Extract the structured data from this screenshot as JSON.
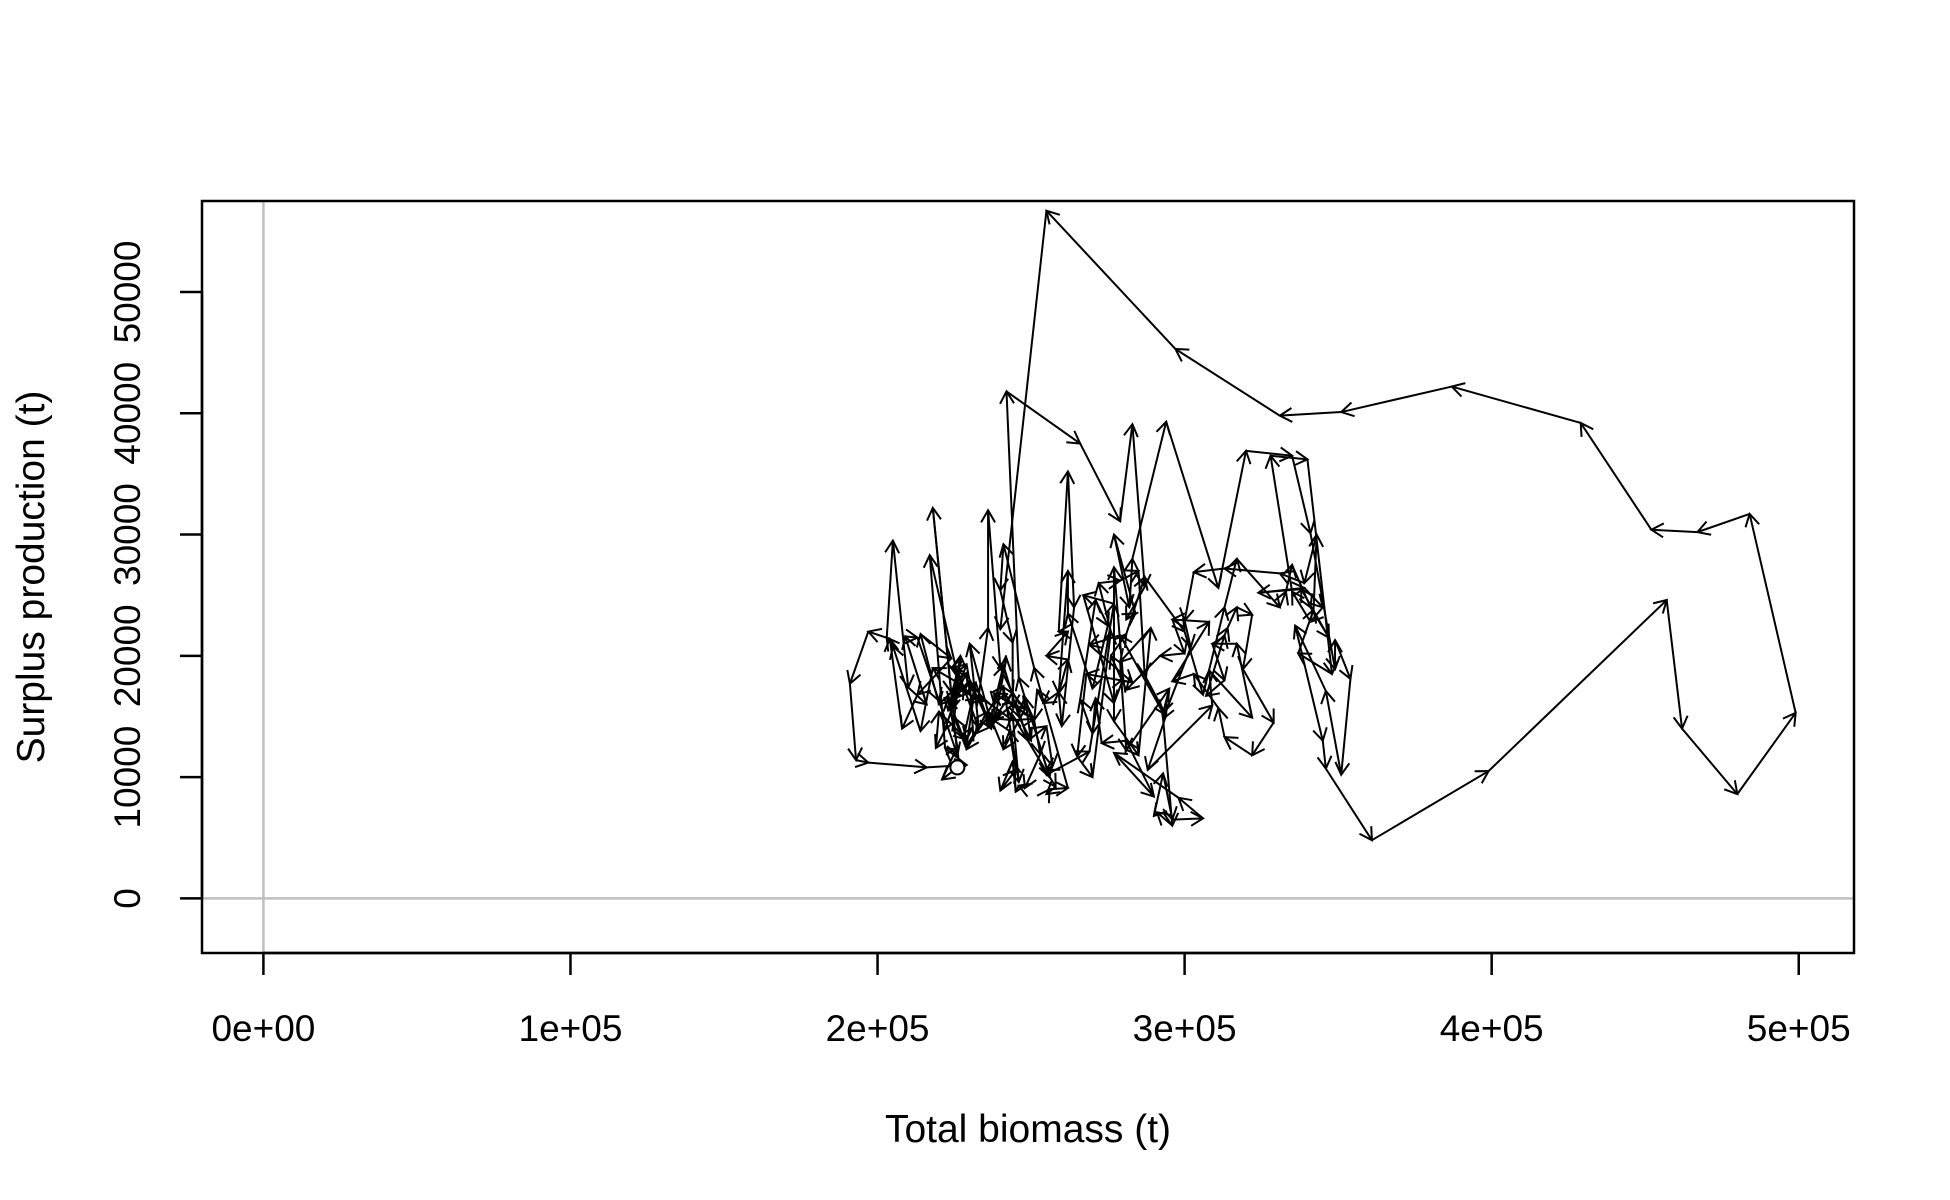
{
  "chart_data": {
    "type": "line",
    "subtype": "phase-plot-with-arrows",
    "title": "",
    "xlabel": "Total biomass (t)",
    "ylabel": "Surplus production (t)",
    "xlim": [
      -20000,
      518000
    ],
    "ylim": [
      -4500,
      57500
    ],
    "x_ticks": [
      0,
      100000,
      200000,
      300000,
      400000,
      500000
    ],
    "x_tick_labels": [
      "0e+00",
      "1e+05",
      "2e+05",
      "3e+05",
      "4e+05",
      "5e+05"
    ],
    "y_ticks": [
      0,
      10000,
      20000,
      30000,
      40000,
      50000
    ],
    "y_tick_labels": [
      "0",
      "10000",
      "20000",
      "30000",
      "40000",
      "50000"
    ],
    "reference_lines": {
      "x": 0,
      "y": 0,
      "color": "#bfbfbf"
    },
    "grid": false,
    "legend": "none",
    "start_marker": {
      "x": 226000,
      "y": 10800,
      "shape": "open-circle"
    },
    "series": [
      {
        "points": [
          [
            226000,
            10800
          ],
          [
            221000,
            9800
          ],
          [
            226000,
            12500
          ],
          [
            223000,
            16500
          ],
          [
            228000,
            13200
          ],
          [
            232000,
            17800
          ],
          [
            229000,
            12600
          ],
          [
            236000,
            15400
          ],
          [
            230000,
            21000
          ],
          [
            233000,
            14000
          ],
          [
            226000,
            18800
          ],
          [
            223000,
            15500
          ],
          [
            228000,
            17500
          ],
          [
            218000,
            19000
          ],
          [
            214000,
            13800
          ],
          [
            205000,
            20800
          ],
          [
            203000,
            21500
          ],
          [
            205000,
            29500
          ],
          [
            210000,
            17400
          ],
          [
            216000,
            16000
          ],
          [
            209000,
            21600
          ],
          [
            213000,
            21500
          ],
          [
            220000,
            16300
          ],
          [
            226000,
            11800
          ],
          [
            218000,
            32200
          ],
          [
            224000,
            17000
          ],
          [
            220000,
            16000
          ],
          [
            214000,
            21800
          ],
          [
            224000,
            19800
          ],
          [
            213000,
            16800
          ],
          [
            208000,
            14000
          ],
          [
            204000,
            21400
          ],
          [
            197000,
            22000
          ],
          [
            191000,
            17700
          ],
          [
            193000,
            11400
          ],
          [
            197000,
            11200
          ],
          [
            216000,
            10800
          ],
          [
            229000,
            11000
          ],
          [
            222000,
            12400
          ],
          [
            217000,
            28300
          ],
          [
            226000,
            18500
          ],
          [
            224000,
            16000
          ],
          [
            229000,
            18600
          ],
          [
            237000,
            14000
          ],
          [
            233000,
            16800
          ],
          [
            236000,
            22300
          ],
          [
            236000,
            32000
          ],
          [
            240000,
            19000
          ],
          [
            244000,
            16900
          ],
          [
            248000,
            15600
          ],
          [
            241000,
            12300
          ],
          [
            236000,
            15400
          ],
          [
            241000,
            17500
          ],
          [
            246000,
            9600
          ],
          [
            244000,
            15100
          ],
          [
            258000,
            9200
          ],
          [
            255000,
            8600
          ],
          [
            256000,
            9000
          ],
          [
            262000,
            9100
          ],
          [
            251000,
            19000
          ],
          [
            241000,
            29200
          ],
          [
            240000,
            25400
          ],
          [
            244000,
            21100
          ],
          [
            244000,
            15800
          ],
          [
            244000,
            17000
          ],
          [
            237000,
            14500
          ],
          [
            245000,
            16200
          ],
          [
            249000,
            13000
          ],
          [
            255000,
            14200
          ],
          [
            257000,
            10900
          ],
          [
            255000,
            10600
          ],
          [
            255000,
            10200
          ],
          [
            269000,
            12100
          ],
          [
            277000,
            24300
          ],
          [
            267000,
            25000
          ],
          [
            277000,
            16100
          ],
          [
            280000,
            18100
          ],
          [
            277000,
            27300
          ],
          [
            277000,
            14600
          ],
          [
            285000,
            11800
          ],
          [
            289000,
            22300
          ],
          [
            279000,
            19500
          ],
          [
            281000,
            12200
          ],
          [
            295000,
            17300
          ],
          [
            293000,
            15300
          ],
          [
            279000,
            21700
          ],
          [
            269000,
            20900
          ],
          [
            283000,
            17800
          ],
          [
            268000,
            18500
          ],
          [
            265000,
            11700
          ],
          [
            270000,
            10000
          ],
          [
            276000,
            22000
          ],
          [
            272000,
            26000
          ],
          [
            279000,
            26200
          ],
          [
            285000,
            27000
          ],
          [
            287000,
            18400
          ],
          [
            294000,
            15100
          ],
          [
            288000,
            10600
          ],
          [
            309000,
            15900
          ],
          [
            308000,
            18800
          ],
          [
            322000,
            14900
          ],
          [
            317000,
            21000
          ],
          [
            309000,
            21000
          ],
          [
            313000,
            18000
          ],
          [
            307000,
            16700
          ],
          [
            313000,
            21700
          ],
          [
            314000,
            22300
          ],
          [
            317000,
            24000
          ],
          [
            322000,
            23400
          ],
          [
            319000,
            18900
          ],
          [
            329000,
            14500
          ],
          [
            322000,
            11800
          ],
          [
            313000,
            13300
          ],
          [
            311000,
            15700
          ],
          [
            303000,
            18500
          ],
          [
            296000,
            17900
          ],
          [
            308000,
            22800
          ],
          [
            296000,
            23000
          ],
          [
            300000,
            20200
          ],
          [
            292000,
            20000
          ],
          [
            281000,
            17200
          ],
          [
            276000,
            20000
          ],
          [
            281000,
            21800
          ],
          [
            287000,
            26500
          ],
          [
            300000,
            22000
          ],
          [
            306000,
            16800
          ],
          [
            313000,
            24000
          ],
          [
            317000,
            28000
          ],
          [
            331000,
            24000
          ],
          [
            333000,
            25300
          ],
          [
            335000,
            27500
          ],
          [
            341000,
            24000
          ],
          [
            347000,
            21500
          ],
          [
            338000,
            25500
          ],
          [
            324000,
            25200
          ],
          [
            339000,
            25600
          ],
          [
            345000,
            24000
          ],
          [
            341000,
            22800
          ],
          [
            335000,
            25300
          ],
          [
            328000,
            36500
          ],
          [
            340000,
            36200
          ],
          [
            348000,
            18500
          ],
          [
            337000,
            20200
          ],
          [
            342000,
            23800
          ],
          [
            343000,
            30000
          ],
          [
            339000,
            26000
          ],
          [
            331000,
            26800
          ],
          [
            313000,
            27200
          ],
          [
            303000,
            26900
          ],
          [
            300000,
            22900
          ],
          [
            302000,
            20700
          ],
          [
            293000,
            14800
          ],
          [
            296000,
            6000
          ],
          [
            291000,
            7100
          ],
          [
            290000,
            6800
          ],
          [
            293000,
            10300
          ],
          [
            296000,
            6500
          ],
          [
            306000,
            6600
          ],
          [
            298000,
            8300
          ],
          [
            277000,
            12000
          ],
          [
            290000,
            8400
          ],
          [
            281000,
            13000
          ],
          [
            273000,
            12800
          ],
          [
            271000,
            16500
          ],
          [
            270000,
            13600
          ],
          [
            266000,
            16400
          ],
          [
            271000,
            24600
          ],
          [
            275000,
            22500
          ],
          [
            270000,
            17300
          ],
          [
            262000,
            23500
          ],
          [
            262000,
            27000
          ],
          [
            259000,
            16900
          ],
          [
            262000,
            19700
          ],
          [
            255000,
            20000
          ],
          [
            262000,
            22000
          ],
          [
            259000,
            22000
          ],
          [
            262000,
            35200
          ],
          [
            264000,
            24000
          ],
          [
            260000,
            14200
          ],
          [
            259000,
            17000
          ],
          [
            254000,
            16100
          ],
          [
            252000,
            17200
          ],
          [
            251000,
            14700
          ],
          [
            253000,
            11900
          ],
          [
            248000,
            9100
          ],
          [
            246000,
            9300
          ],
          [
            245000,
            8800
          ],
          [
            244000,
            11300
          ],
          [
            240000,
            8900
          ],
          [
            245000,
            10600
          ],
          [
            243000,
            13800
          ],
          [
            236000,
            15000
          ],
          [
            232000,
            13600
          ],
          [
            229000,
            12300
          ],
          [
            225000,
            14900
          ],
          [
            227000,
            20000
          ],
          [
            224000,
            15500
          ],
          [
            222000,
            13900
          ],
          [
            219000,
            12400
          ],
          [
            220000,
            15400
          ],
          [
            229000,
            13100
          ],
          [
            231000,
            14100
          ],
          [
            230000,
            18000
          ],
          [
            225000,
            16500
          ],
          [
            229000,
            19300
          ],
          [
            224000,
            19000
          ],
          [
            230000,
            16800
          ],
          [
            233000,
            16500
          ],
          [
            235000,
            16300
          ],
          [
            244000,
            14700
          ],
          [
            251000,
            14800
          ],
          [
            238000,
            16900
          ],
          [
            238000,
            14500
          ],
          [
            242000,
            19800
          ],
          [
            238000,
            16000
          ],
          [
            241000,
            19200
          ],
          [
            246000,
            15000
          ],
          [
            250000,
            13000
          ],
          [
            248000,
            16600
          ],
          [
            256000,
            10000
          ],
          [
            246000,
            18200
          ],
          [
            242000,
            41800
          ],
          [
            266000,
            37500
          ],
          [
            279000,
            31100
          ],
          [
            283000,
            39100
          ],
          [
            287000,
            25700
          ],
          [
            281000,
            23000
          ],
          [
            284000,
            23500
          ],
          [
            277000,
            30000
          ],
          [
            282000,
            24000
          ],
          [
            283000,
            28000
          ],
          [
            294000,
            39300
          ],
          [
            311000,
            25600
          ],
          [
            320000,
            36900
          ],
          [
            335000,
            36500
          ],
          [
            341000,
            30100
          ],
          [
            349000,
            18900
          ],
          [
            349000,
            21300
          ],
          [
            354000,
            18100
          ],
          [
            351000,
            10200
          ],
          [
            346000,
            17100
          ],
          [
            336000,
            22500
          ],
          [
            345000,
            13000
          ],
          [
            346000,
            10700
          ],
          [
            361000,
            4800
          ],
          [
            399000,
            10500
          ],
          [
            457000,
            24600
          ],
          [
            462000,
            14000
          ],
          [
            480000,
            8600
          ],
          [
            499000,
            15300
          ],
          [
            484000,
            31700
          ],
          [
            467000,
            30200
          ],
          [
            452000,
            30400
          ],
          [
            429000,
            39200
          ],
          [
            387000,
            42200
          ],
          [
            351000,
            40100
          ],
          [
            331000,
            39800
          ],
          [
            297000,
            45300
          ],
          [
            255000,
            56700
          ],
          [
            240000,
            22200
          ]
        ]
      }
    ]
  }
}
